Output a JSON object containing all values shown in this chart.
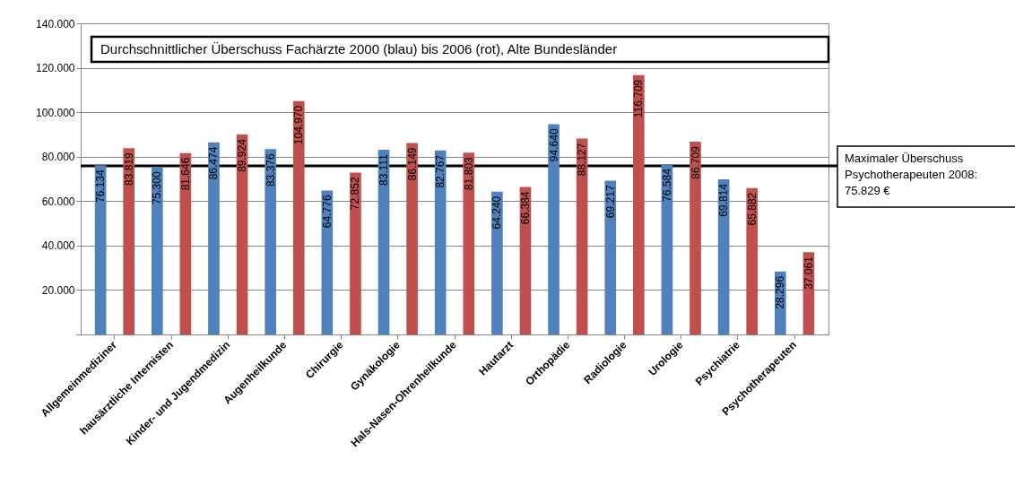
{
  "chart_data": {
    "type": "bar",
    "title": "Durchschnittlicher Überschuss Fachärzte 2000 (blau) bis 2006 (rot), Alte Bundesländer",
    "categories": [
      "Allgemeinmediziner",
      "hausärztliche Internisten",
      "Kinder- und Jugendmedizin",
      "Augenheilkunde",
      "Chirurgie",
      "Gynäkologie",
      "Hals-Nasen-Ohrenheilkunde",
      "Hautarzt",
      "Orthopädie",
      "Radiologie",
      "Urologie",
      "Psychiatrie",
      "Psychotherapeuten"
    ],
    "series": [
      {
        "color": "#4f81bd",
        "values": [
          76134,
          75300,
          86474,
          83376,
          64776,
          83111,
          82767,
          64240,
          94640,
          69217,
          76584,
          69814,
          28296
        ],
        "value_labels": [
          "76.134",
          "75.300",
          "86.474",
          "83.376",
          "64.776",
          "83.111",
          "82.767",
          "64.240",
          "94.640",
          "69.217",
          "76.584",
          "69.814",
          "28.296"
        ]
      },
      {
        "color": "#c0504d",
        "values": [
          83819,
          81646,
          89924,
          104970,
          72852,
          86149,
          81803,
          66384,
          88127,
          116709,
          86709,
          65882,
          37061
        ],
        "value_labels": [
          "83.819",
          "81.646",
          "89.924",
          "104.970",
          "72.852",
          "86.149",
          "81.803",
          "66.384",
          "88.127",
          "116.709",
          "86.709",
          "65.882",
          "37.061"
        ]
      }
    ],
    "ylim": [
      0,
      140000
    ],
    "yticks": [
      {
        "value": 0,
        "label": null
      },
      {
        "value": 20000,
        "label": "20.000"
      },
      {
        "value": 40000,
        "label": "40.000"
      },
      {
        "value": 60000,
        "label": "60.000"
      },
      {
        "value": 80000,
        "label": "80.000"
      },
      {
        "value": 100000,
        "label": "100.000"
      },
      {
        "value": 120000,
        "label": "120.000"
      },
      {
        "value": 140000,
        "label": "140.000"
      }
    ],
    "grid": "y",
    "ref_lines": [
      {
        "axis": "y",
        "value": 75829,
        "label": "Maximaler Überschuss\nPsychotherapeuten 2008:\n75.829 €",
        "color": "#000000"
      }
    ]
  }
}
